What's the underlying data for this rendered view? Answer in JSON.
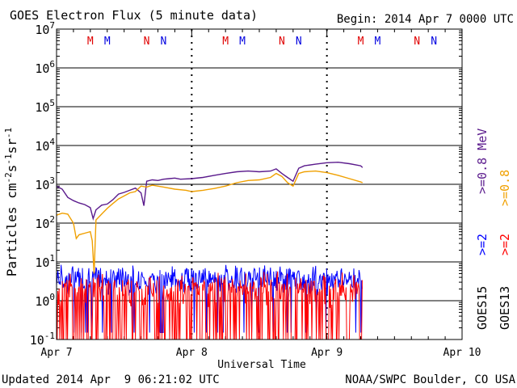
{
  "chart_data": {
    "type": "line",
    "title": "GOES Electron Flux (5 minute data)",
    "begin_label": "Begin: 2014 Apr 7 0000 UTC",
    "xlabel": "Universal Time",
    "ylabel": "Particles cm-2s-1sr-1",
    "ylabel_parts": {
      "base": "Particles cm",
      "exp1": "-2",
      "mid": "s",
      "exp2": "-1",
      "mid2": "sr",
      "exp3": "-1"
    },
    "yscale": "log",
    "ylim": [
      0.1,
      10000000
    ],
    "y_ticks": [
      {
        "mant": "10",
        "exp": "-1",
        "value": 0.1
      },
      {
        "mant": "10",
        "exp": "0",
        "value": 1
      },
      {
        "mant": "10",
        "exp": "1",
        "value": 10
      },
      {
        "mant": "10",
        "exp": "2",
        "value": 100
      },
      {
        "mant": "10",
        "exp": "3",
        "value": 1000
      },
      {
        "mant": "10",
        "exp": "4",
        "value": 10000
      },
      {
        "mant": "10",
        "exp": "5",
        "value": 100000
      },
      {
        "mant": "10",
        "exp": "6",
        "value": 1000000
      },
      {
        "mant": "10",
        "exp": "7",
        "value": 10000000
      }
    ],
    "xlim": [
      "2014-04-07 00:00",
      "2014-04-10 00:00"
    ],
    "x_ticks": [
      {
        "label": "Apr 7",
        "time": "2014-04-07 00:00"
      },
      {
        "label": "Apr 8",
        "time": "2014-04-08 00:00"
      },
      {
        "label": "Apr 9",
        "time": "2014-04-09 00:00"
      },
      {
        "label": "Apr 10",
        "time": "2014-04-10 00:00"
      }
    ],
    "grid": true,
    "threshold": {
      "value": 1000,
      "style": "dashed"
    },
    "day_markers_dotted": [
      "2014-04-08 00:00",
      "2014-04-09 00:00"
    ],
    "local_time_markers": [
      {
        "label": "M",
        "time": "2014-04-07 06:00",
        "color": "#e00000"
      },
      {
        "label": "M",
        "time": "2014-04-07 09:00",
        "color": "#0000e0"
      },
      {
        "label": "N",
        "time": "2014-04-07 16:00",
        "color": "#e00000"
      },
      {
        "label": "N",
        "time": "2014-04-07 19:00",
        "color": "#0000e0"
      },
      {
        "label": "M",
        "time": "2014-04-08 06:00",
        "color": "#e00000"
      },
      {
        "label": "M",
        "time": "2014-04-08 09:00",
        "color": "#0000e0"
      },
      {
        "label": "N",
        "time": "2014-04-08 16:00",
        "color": "#e00000"
      },
      {
        "label": "N",
        "time": "2014-04-08 19:00",
        "color": "#0000e0"
      },
      {
        "label": "M",
        "time": "2014-04-09 06:00",
        "color": "#e00000"
      },
      {
        "label": "M",
        "time": "2014-04-09 09:00",
        "color": "#0000e0"
      },
      {
        "label": "N",
        "time": "2014-04-09 16:00",
        "color": "#e00000"
      },
      {
        "label": "N",
        "time": "2014-04-09 19:00",
        "color": "#0000e0"
      }
    ],
    "series": [
      {
        "name": "GOES15 >=0.8 MeV",
        "color": "#5a1a8c",
        "points": [
          [
            "2014-04-07 00:00",
            900
          ],
          [
            "2014-04-07 01:00",
            750
          ],
          [
            "2014-04-07 02:00",
            460
          ],
          [
            "2014-04-07 03:00",
            380
          ],
          [
            "2014-04-07 04:00",
            330
          ],
          [
            "2014-04-07 05:00",
            300
          ],
          [
            "2014-04-07 06:00",
            250
          ],
          [
            "2014-04-07 06:30",
            130
          ],
          [
            "2014-04-07 07:00",
            220
          ],
          [
            "2014-04-07 08:00",
            290
          ],
          [
            "2014-04-07 09:00",
            310
          ],
          [
            "2014-04-07 10:00",
            400
          ],
          [
            "2014-04-07 11:00",
            560
          ],
          [
            "2014-04-07 12:00",
            620
          ],
          [
            "2014-04-07 13:00",
            700
          ],
          [
            "2014-04-07 14:00",
            800
          ],
          [
            "2014-04-07 15:00",
            600
          ],
          [
            "2014-04-07 15:30",
            280
          ],
          [
            "2014-04-07 16:00",
            1200
          ],
          [
            "2014-04-07 17:00",
            1300
          ],
          [
            "2014-04-07 18:00",
            1250
          ],
          [
            "2014-04-07 19:00",
            1350
          ],
          [
            "2014-04-07 20:00",
            1400
          ],
          [
            "2014-04-07 21:00",
            1450
          ],
          [
            "2014-04-07 22:00",
            1350
          ],
          [
            "2014-04-08 00:00",
            1400
          ],
          [
            "2014-04-08 02:00",
            1500
          ],
          [
            "2014-04-08 04:00",
            1700
          ],
          [
            "2014-04-08 06:00",
            1900
          ],
          [
            "2014-04-08 08:00",
            2100
          ],
          [
            "2014-04-08 10:00",
            2200
          ],
          [
            "2014-04-08 12:00",
            2100
          ],
          [
            "2014-04-08 14:00",
            2200
          ],
          [
            "2014-04-08 15:00",
            2500
          ],
          [
            "2014-04-08 16:00",
            1900
          ],
          [
            "2014-04-08 17:00",
            1500
          ],
          [
            "2014-04-08 18:00",
            1200
          ],
          [
            "2014-04-08 19:00",
            2600
          ],
          [
            "2014-04-08 20:00",
            3000
          ],
          [
            "2014-04-08 22:00",
            3300
          ],
          [
            "2014-04-09 00:00",
            3600
          ],
          [
            "2014-04-09 02:00",
            3700
          ],
          [
            "2014-04-09 04:00",
            3400
          ],
          [
            "2014-04-09 06:00",
            3000
          ],
          [
            "2014-04-09 06:20",
            2700
          ]
        ]
      },
      {
        "name": "GOES13 >=0.8 MeV",
        "color": "#f0a000",
        "points": [
          [
            "2014-04-07 00:00",
            160
          ],
          [
            "2014-04-07 01:00",
            180
          ],
          [
            "2014-04-07 02:00",
            170
          ],
          [
            "2014-04-07 03:00",
            100
          ],
          [
            "2014-04-07 03:30",
            40
          ],
          [
            "2014-04-07 04:00",
            50
          ],
          [
            "2014-04-07 05:00",
            55
          ],
          [
            "2014-04-07 06:00",
            60
          ],
          [
            "2014-04-07 06:20",
            35
          ],
          [
            "2014-04-07 06:40",
            5
          ],
          [
            "2014-04-07 07:00",
            120
          ],
          [
            "2014-04-07 08:00",
            170
          ],
          [
            "2014-04-07 09:00",
            240
          ],
          [
            "2014-04-07 10:00",
            320
          ],
          [
            "2014-04-07 11:00",
            420
          ],
          [
            "2014-04-07 12:00",
            500
          ],
          [
            "2014-04-07 13:00",
            600
          ],
          [
            "2014-04-07 14:00",
            650
          ],
          [
            "2014-04-07 15:00",
            900
          ],
          [
            "2014-04-07 16:00",
            850
          ],
          [
            "2014-04-07 17:00",
            950
          ],
          [
            "2014-04-07 19:00",
            850
          ],
          [
            "2014-04-07 21:00",
            750
          ],
          [
            "2014-04-07 23:00",
            700
          ],
          [
            "2014-04-08 00:00",
            650
          ],
          [
            "2014-04-08 02:00",
            700
          ],
          [
            "2014-04-08 04:00",
            780
          ],
          [
            "2014-04-08 06:00",
            900
          ],
          [
            "2014-04-08 08:00",
            1100
          ],
          [
            "2014-04-08 10:00",
            1250
          ],
          [
            "2014-04-08 12:00",
            1300
          ],
          [
            "2014-04-08 14:00",
            1500
          ],
          [
            "2014-04-08 15:00",
            1900
          ],
          [
            "2014-04-08 16:00",
            1600
          ],
          [
            "2014-04-08 17:00",
            1100
          ],
          [
            "2014-04-08 18:00",
            900
          ],
          [
            "2014-04-08 19:00",
            1900
          ],
          [
            "2014-04-08 20:00",
            2100
          ],
          [
            "2014-04-08 22:00",
            2200
          ],
          [
            "2014-04-09 00:00",
            2000
          ],
          [
            "2014-04-09 02:00",
            1700
          ],
          [
            "2014-04-09 04:00",
            1400
          ],
          [
            "2014-04-09 06:00",
            1150
          ],
          [
            "2014-04-09 06:20",
            1100
          ]
        ]
      },
      {
        "name": "GOES15 >=2 MeV",
        "color": "#0000ff",
        "summary": {
          "start": "2014-04-07 00:00",
          "end": "2014-04-09 06:20",
          "typical": 2.5,
          "high": 6,
          "low": 0.15
        }
      },
      {
        "name": "GOES13 >=2 MeV",
        "color": "#ff0000",
        "summary": {
          "start": "2014-04-07 00:00",
          "end": "2014-04-09 06:20",
          "typical": 1.2,
          "high": 4,
          "low": 0.1
        }
      }
    ],
    "right_legend": [
      {
        "sat": "GOES15",
        "low": ">=2",
        "high": ">=0.8 MeV",
        "low_color": "#0000ff",
        "high_color": "#5a1a8c"
      },
      {
        "sat": "GOES13",
        "low": ">=2",
        "high": ">=0.8",
        "low_color": "#ff0000",
        "high_color": "#f0a000"
      }
    ]
  },
  "footer": {
    "updated": "Updated 2014 Apr  9 06:21:02 UTC",
    "credit": "NOAA/SWPC Boulder, CO USA"
  }
}
